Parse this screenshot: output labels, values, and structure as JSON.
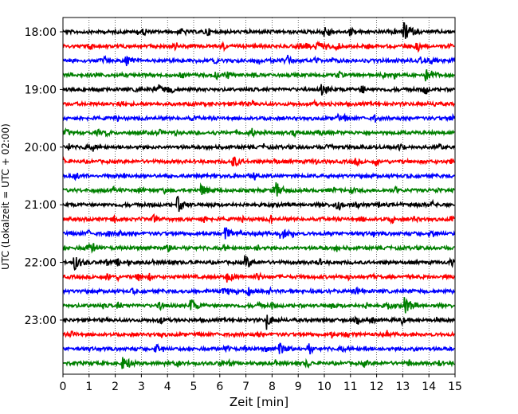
{
  "chart_data": {
    "type": "line",
    "xlabel": "Zeit  [min]",
    "ylabel": "UTC (Lokalzeit = UTC + 02:00)",
    "xlim": [
      0,
      15
    ],
    "x_ticks": [
      "0",
      "1",
      "2",
      "3",
      "4",
      "5",
      "6",
      "7",
      "8",
      "9",
      "10",
      "11",
      "12",
      "13",
      "14",
      "15"
    ],
    "y_tick_labels": [
      "18:00",
      "19:00",
      "20:00",
      "21:00",
      "22:00",
      "23:00"
    ],
    "rows_per_hour": 4,
    "row_count": 24,
    "trace_colors": [
      "#000000",
      "#ff0000",
      "#0000ff",
      "#008000"
    ],
    "vertical_grid": "dotted",
    "events": [
      {
        "row": 0,
        "minute": 13.05,
        "amp": 2.2
      },
      {
        "row": 0,
        "minute": 9.95,
        "amp": 1.4
      },
      {
        "row": 1,
        "minute": 9.7,
        "amp": 1.4
      },
      {
        "row": 2,
        "minute": 2.4,
        "amp": 1.3
      },
      {
        "row": 3,
        "minute": 13.9,
        "amp": 1.3
      },
      {
        "row": 4,
        "minute": 3.7,
        "amp": 1.3
      },
      {
        "row": 4,
        "minute": 9.9,
        "amp": 1.3
      },
      {
        "row": 9,
        "minute": 6.5,
        "amp": 1.5
      },
      {
        "row": 11,
        "minute": 5.3,
        "amp": 1.4
      },
      {
        "row": 11,
        "minute": 8.2,
        "amp": 1.4
      },
      {
        "row": 12,
        "minute": 4.4,
        "amp": 1.9
      },
      {
        "row": 14,
        "minute": 6.2,
        "amp": 1.6
      },
      {
        "row": 14,
        "minute": 8.3,
        "amp": 1.6
      },
      {
        "row": 16,
        "minute": 0.45,
        "amp": 1.8
      },
      {
        "row": 16,
        "minute": 7.0,
        "amp": 1.5
      },
      {
        "row": 17,
        "minute": 6.3,
        "amp": 1.2
      },
      {
        "row": 19,
        "minute": 13.1,
        "amp": 2.1
      },
      {
        "row": 19,
        "minute": 4.9,
        "amp": 1.3
      },
      {
        "row": 20,
        "minute": 7.8,
        "amp": 1.6
      },
      {
        "row": 22,
        "minute": 8.3,
        "amp": 1.6
      },
      {
        "row": 23,
        "minute": 2.3,
        "amp": 1.4
      }
    ]
  }
}
